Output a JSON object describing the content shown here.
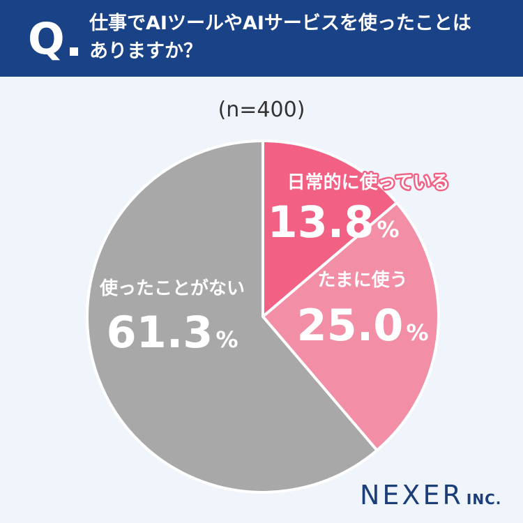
{
  "header": {
    "q_label": "Q",
    "question_line1": "仕事でAIツールやAIサービスを使ったことは",
    "question_line2": "ありますか？"
  },
  "sample_size": "(n=400)",
  "brand": {
    "name": "NEXER",
    "suffix": "INC."
  },
  "colors": {
    "header_bg": "#1a4287",
    "page_bg": "#f0f4fb",
    "slice_daily": "#f26084",
    "slice_sometimes": "#f28ea6",
    "slice_never": "#a8a8a8"
  },
  "chart_data": {
    "type": "pie",
    "title": "仕事でAIツールやAIサービスを使ったことはありますか？",
    "n": 400,
    "unit": "%",
    "slices": [
      {
        "label": "日常的に使っている",
        "value": 13.8,
        "display": "13.8",
        "color": "#f26084"
      },
      {
        "label": "たまに使う",
        "value": 25.0,
        "display": "25.0",
        "color": "#f28ea6"
      },
      {
        "label": "使ったことがない",
        "value": 61.3,
        "display": "61.3",
        "color": "#a8a8a8"
      }
    ]
  }
}
